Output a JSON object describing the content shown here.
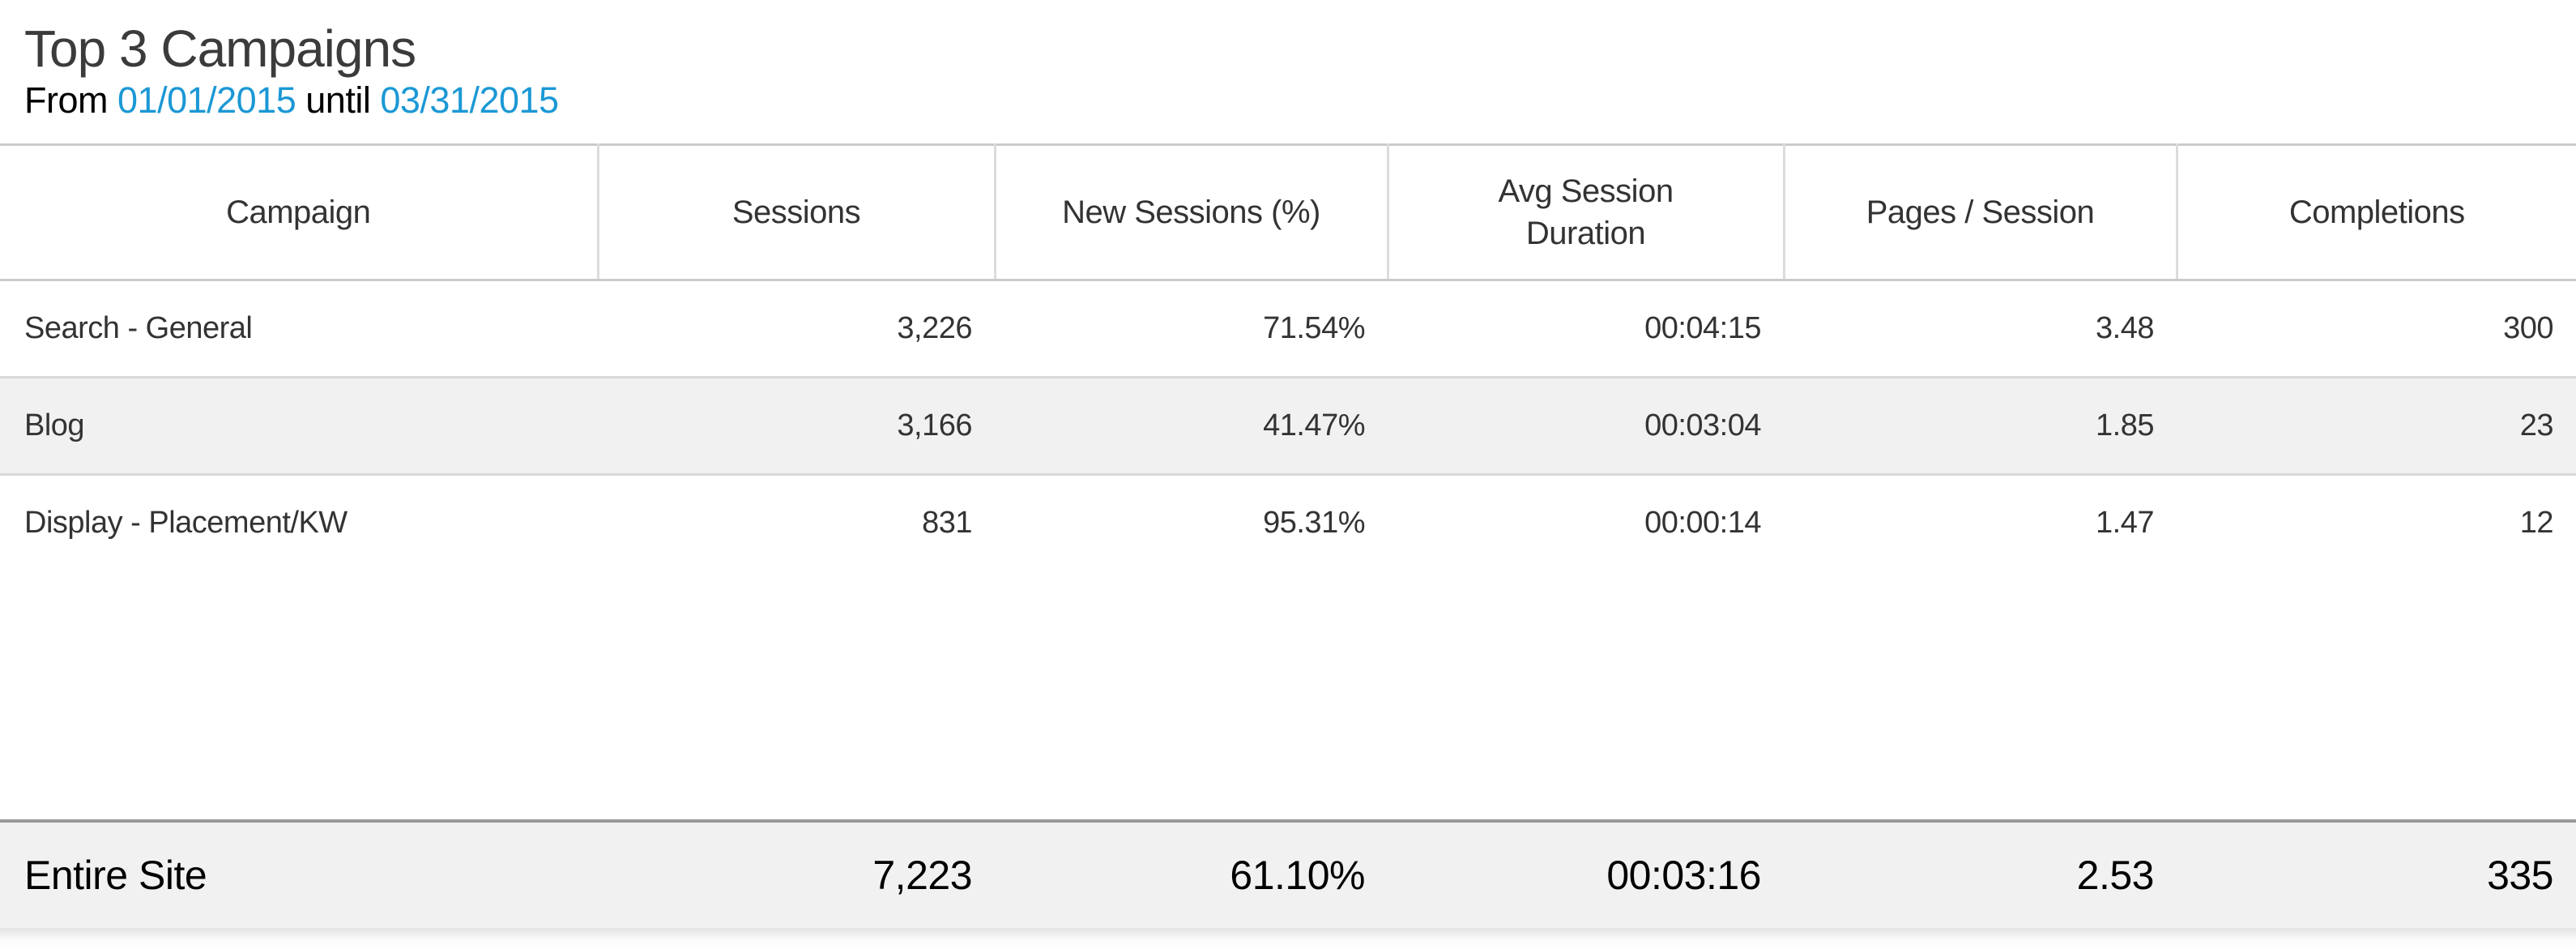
{
  "header": {
    "title": "Top 3 Campaigns",
    "date_range": {
      "from_label": "From",
      "start_date": "01/01/2015",
      "until_label": "until",
      "end_date": "03/31/2015"
    }
  },
  "colors": {
    "title_gray": "#3b3b3b",
    "text_gray": "#333333",
    "link_blue": "#1b98d5",
    "zebra_row_bg": "#f1f1f1",
    "footer_bg": "#f1f1f1",
    "header_border": "#cbcbcb",
    "row_border": "#d8d8d8",
    "footer_top_border": "#999999"
  },
  "table": {
    "columns": [
      {
        "label": "Campaign",
        "align": "left",
        "wrap": false
      },
      {
        "label": "Sessions",
        "align": "right",
        "wrap": false
      },
      {
        "label": "New Sessions (%)",
        "align": "right",
        "wrap": false
      },
      {
        "label": "Avg Session Duration",
        "align": "right",
        "wrap": true
      },
      {
        "label": "Pages / Session",
        "align": "right",
        "wrap": false
      },
      {
        "label": "Completions",
        "align": "right",
        "wrap": false
      }
    ],
    "rows": [
      [
        "Search - General",
        "3,226",
        "71.54%",
        "00:04:15",
        "3.48",
        "300"
      ],
      [
        "Blog",
        "3,166",
        "41.47%",
        "00:03:04",
        "1.85",
        "23"
      ],
      [
        "Display - Placement/KW",
        "831",
        "95.31%",
        "00:00:14",
        "1.47",
        "12"
      ]
    ],
    "footer": [
      "Entire Site",
      "7,223",
      "61.10%",
      "00:03:16",
      "2.53",
      "335"
    ]
  },
  "chart_data": {
    "type": "table",
    "title": "Top 3 Campaigns",
    "date_range": {
      "from": "01/01/2015",
      "until": "03/31/2015"
    },
    "columns": [
      "Campaign",
      "Sessions",
      "New Sessions (%)",
      "Avg Session Duration",
      "Pages / Session",
      "Completions"
    ],
    "rows": [
      {
        "campaign": "Search - General",
        "sessions": 3226,
        "new_sessions_pct": 71.54,
        "avg_session_duration": "00:04:15",
        "pages_per_session": 3.48,
        "completions": 300
      },
      {
        "campaign": "Blog",
        "sessions": 3166,
        "new_sessions_pct": 41.47,
        "avg_session_duration": "00:03:04",
        "pages_per_session": 1.85,
        "completions": 23
      },
      {
        "campaign": "Display - Placement/KW",
        "sessions": 831,
        "new_sessions_pct": 95.31,
        "avg_session_duration": "00:00:14",
        "pages_per_session": 1.47,
        "completions": 12
      }
    ],
    "totals": {
      "campaign": "Entire Site",
      "sessions": 7223,
      "new_sessions_pct": 61.1,
      "avg_session_duration": "00:03:16",
      "pages_per_session": 2.53,
      "completions": 335
    },
    "layout": {
      "zebra_striping": true,
      "header_column_separators": true,
      "totals_row_position": "bottom"
    }
  }
}
